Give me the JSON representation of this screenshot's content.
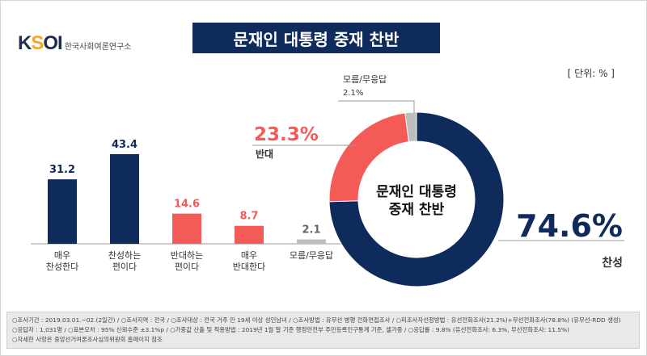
{
  "logo": {
    "mark": "KSOI",
    "text": "한국사회여론연구소"
  },
  "header": {
    "title": "문재인 대통령 중재 찬반",
    "unit": "[ 단위: % ]"
  },
  "chart_data": [
    {
      "type": "bar",
      "categories": [
        "매우\n찬성한다",
        "찬성하는\n편이다",
        "반대하는\n편이다",
        "매우\n반대한다",
        "모름/무응답"
      ],
      "values": [
        31.2,
        43.4,
        14.6,
        8.7,
        2.1
      ],
      "colors": [
        "#0f2b5b",
        "#0f2b5b",
        "#f45a56",
        "#f45a56",
        "#bdbdbd"
      ],
      "label_colors": [
        "#0f2b5b",
        "#0f2b5b",
        "#f45a56",
        "#f45a56",
        "#666666"
      ],
      "ylim": [
        0,
        50
      ]
    },
    {
      "type": "pie",
      "style": "donut",
      "center_label": "문재인 대통령\n중재 찬반",
      "slices": [
        {
          "label": "찬성",
          "value": 74.6,
          "value_label": "74.6%",
          "color": "#0f2b5b"
        },
        {
          "label": "반대",
          "value": 23.3,
          "value_label": "23.3%",
          "color": "#f45a56"
        },
        {
          "label": "모름/무응답",
          "value": 2.1,
          "value_label": "2.1%",
          "color": "#bdbdbd"
        }
      ]
    }
  ],
  "footer": {
    "lines": [
      "○조사기간 : 2019.03.01.~02.(2일간) / ○조사지역 : 전국 / ○조사대상 : 전국 거주 만 19세 이상 성인남녀 / ○조사방법 : 유무선 병행 전화면접조사 / ○피조사자선정방법 : 유선전화조사(21.2%)+무선전화조사(78.8%) (유무선-RDD 생성)",
      "○응답자 : 1,031명 / ○표본오차 : 95% 신뢰수준 ±3.1%p / ○가중값 산출 및 적용방법 : 2019년 1월 말 기준 행정안전부 주민등록인구통계 기준, 셀가중 / ○응답률 : 9.8% (유선전화조사: 6.3%, 무선전화조사: 11.5%)",
      "○자세한 사항은 중앙선거여론조사심의위원회 홈페이지 참조"
    ]
  }
}
